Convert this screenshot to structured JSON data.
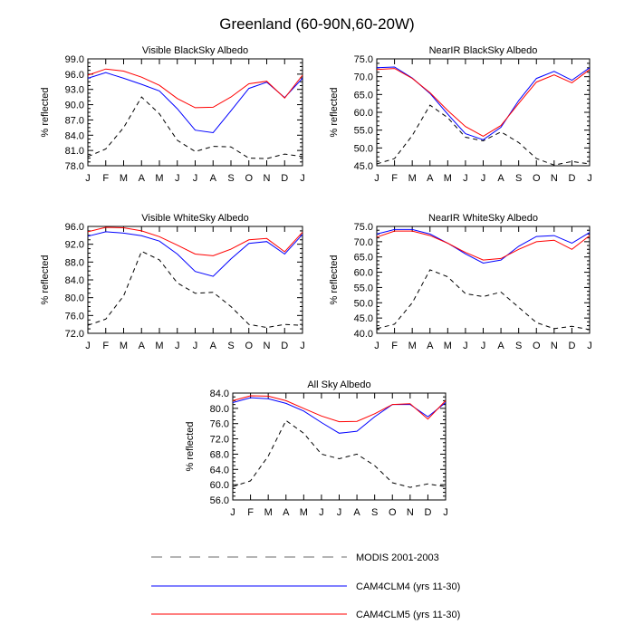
{
  "main_title": "Greenland (60-90N,60-20W)",
  "legend": [
    {
      "label": "MODIS 2001-2003",
      "color": "#000000",
      "dash": true
    },
    {
      "label": "CAM4CLM4 (yrs 11-30)",
      "color": "#0000ff",
      "dash": false
    },
    {
      "label": "CAM4CLM5 (yrs 11-30)",
      "color": "#ff0000",
      "dash": false
    }
  ],
  "chart_data": [
    {
      "type": "line",
      "title": "Visible BlackSky Albedo",
      "ylabel": "% reflected",
      "categories": [
        "J",
        "F",
        "M",
        "A",
        "M",
        "J",
        "J",
        "A",
        "S",
        "O",
        "N",
        "D",
        "J"
      ],
      "yticks": [
        "78.0",
        "81.0",
        "84.0",
        "87.0",
        "90.0",
        "93.0",
        "96.0",
        "99.0"
      ],
      "ylim": [
        78,
        99
      ],
      "series": [
        {
          "name": "MODIS 2001-2003",
          "color": "#000000",
          "dash": true,
          "values": [
            79.8,
            81.3,
            85.5,
            91.5,
            88.2,
            83.0,
            80.8,
            81.8,
            81.7,
            79.5,
            79.4,
            80.3,
            79.8
          ]
        },
        {
          "name": "CAM4CLM4 (yrs 11-30)",
          "color": "#0000ff",
          "dash": false,
          "values": [
            95.2,
            96.3,
            95.2,
            94.0,
            92.7,
            89.2,
            85.0,
            84.5,
            88.8,
            93.2,
            94.4,
            91.4,
            95.2
          ]
        },
        {
          "name": "CAM4CLM5 (yrs 11-30)",
          "color": "#ff0000",
          "dash": false,
          "values": [
            95.8,
            97.0,
            96.6,
            95.4,
            93.8,
            91.2,
            89.4,
            89.5,
            91.5,
            94.1,
            94.6,
            91.3,
            95.8
          ]
        }
      ]
    },
    {
      "type": "line",
      "title": "NearIR BlackSky Albedo",
      "ylabel": "% reflected",
      "categories": [
        "J",
        "F",
        "M",
        "A",
        "M",
        "J",
        "J",
        "A",
        "S",
        "O",
        "N",
        "D",
        "J"
      ],
      "yticks": [
        "45.0",
        "50.0",
        "55.0",
        "60.0",
        "65.0",
        "70.0",
        "75.0"
      ],
      "ylim": [
        45,
        75
      ],
      "series": [
        {
          "name": "MODIS 2001-2003",
          "color": "#000000",
          "dash": true,
          "values": [
            45.5,
            47.0,
            53.5,
            62.0,
            58.5,
            53.0,
            52.0,
            54.5,
            51.5,
            47.0,
            45.2,
            46.2,
            45.5
          ]
        },
        {
          "name": "CAM4CLM4 (yrs 11-30)",
          "color": "#0000ff",
          "dash": false,
          "values": [
            72.5,
            72.7,
            69.6,
            65.3,
            59.5,
            54.0,
            52.3,
            55.8,
            63.3,
            69.5,
            71.5,
            69.0,
            72.5
          ]
        },
        {
          "name": "CAM4CLM5 (yrs 11-30)",
          "color": "#ff0000",
          "dash": false,
          "values": [
            72.0,
            72.3,
            69.5,
            65.5,
            60.5,
            56.0,
            53.3,
            56.3,
            62.5,
            68.5,
            70.5,
            68.3,
            72.0
          ]
        }
      ]
    },
    {
      "type": "line",
      "title": "Visible WhiteSky Albedo",
      "ylabel": "% reflected",
      "categories": [
        "J",
        "F",
        "M",
        "A",
        "M",
        "J",
        "J",
        "A",
        "S",
        "O",
        "N",
        "D",
        "J"
      ],
      "yticks": [
        "72.0",
        "76.0",
        "80.0",
        "84.0",
        "88.0",
        "92.0",
        "96.0"
      ],
      "ylim": [
        72,
        96
      ],
      "series": [
        {
          "name": "MODIS 2001-2003",
          "color": "#000000",
          "dash": true,
          "values": [
            73.8,
            75.2,
            80.4,
            90.4,
            88.5,
            83.3,
            81.0,
            81.2,
            78.0,
            74.0,
            73.3,
            74.0,
            73.8
          ]
        },
        {
          "name": "CAM4CLM4 (yrs 11-30)",
          "color": "#0000ff",
          "dash": false,
          "values": [
            93.8,
            94.8,
            94.5,
            93.9,
            92.7,
            89.8,
            85.9,
            84.8,
            88.7,
            92.2,
            92.6,
            89.8,
            94.2
          ]
        },
        {
          "name": "CAM4CLM5 (yrs 11-30)",
          "color": "#ff0000",
          "dash": false,
          "values": [
            94.8,
            95.8,
            95.7,
            95.0,
            93.7,
            91.8,
            89.8,
            89.4,
            90.9,
            93.0,
            93.3,
            90.3,
            94.7
          ]
        }
      ]
    },
    {
      "type": "line",
      "title": "NearIR WhiteSky Albedo",
      "ylabel": "% reflected",
      "categories": [
        "J",
        "F",
        "M",
        "A",
        "M",
        "J",
        "J",
        "A",
        "S",
        "O",
        "N",
        "D",
        "J"
      ],
      "yticks": [
        "40.0",
        "45.0",
        "50.0",
        "55.0",
        "60.0",
        "65.0",
        "70.0",
        "75.0"
      ],
      "ylim": [
        40,
        75
      ],
      "series": [
        {
          "name": "MODIS 2001-2003",
          "color": "#000000",
          "dash": true,
          "values": [
            41.5,
            43.0,
            50.0,
            60.8,
            58.5,
            53.0,
            52.0,
            53.5,
            48.5,
            43.5,
            41.5,
            42.3,
            41.2
          ]
        },
        {
          "name": "CAM4CLM4 (yrs 11-30)",
          "color": "#0000ff",
          "dash": false,
          "values": [
            72.5,
            74.0,
            74.0,
            72.5,
            69.5,
            66.0,
            63.0,
            64.0,
            68.5,
            71.7,
            72.0,
            69.5,
            73.0
          ]
        },
        {
          "name": "CAM4CLM5 (yrs 11-30)",
          "color": "#ff0000",
          "dash": false,
          "values": [
            71.5,
            73.5,
            73.5,
            72.0,
            69.5,
            66.5,
            64.0,
            64.5,
            67.5,
            70.0,
            70.5,
            67.5,
            72.0
          ]
        }
      ]
    },
    {
      "type": "line",
      "title": "All Sky Albedo",
      "ylabel": "% reflected",
      "categories": [
        "J",
        "F",
        "M",
        "A",
        "M",
        "J",
        "J",
        "A",
        "S",
        "O",
        "N",
        "D",
        "J"
      ],
      "yticks": [
        "56.0",
        "60.0",
        "64.0",
        "68.0",
        "72.0",
        "76.0",
        "80.0",
        "84.0"
      ],
      "ylim": [
        56,
        84
      ],
      "series": [
        {
          "name": "MODIS 2001-2003",
          "color": "#000000",
          "dash": true,
          "values": [
            59.5,
            61.0,
            67.5,
            76.8,
            73.5,
            68.0,
            66.8,
            68.0,
            65.0,
            60.5,
            59.3,
            60.2,
            59.5
          ]
        },
        {
          "name": "CAM4CLM4 (yrs 11-30)",
          "color": "#0000ff",
          "dash": false,
          "values": [
            81.5,
            82.8,
            82.5,
            81.3,
            79.3,
            76.3,
            73.5,
            74.0,
            77.8,
            81.0,
            81.0,
            77.8,
            81.5
          ]
        },
        {
          "name": "CAM4CLM5 (yrs 11-30)",
          "color": "#ff0000",
          "dash": false,
          "values": [
            82.0,
            83.3,
            83.2,
            82.0,
            80.0,
            78.0,
            76.5,
            76.6,
            78.6,
            81.0,
            81.2,
            77.2,
            82.0
          ]
        }
      ]
    }
  ]
}
